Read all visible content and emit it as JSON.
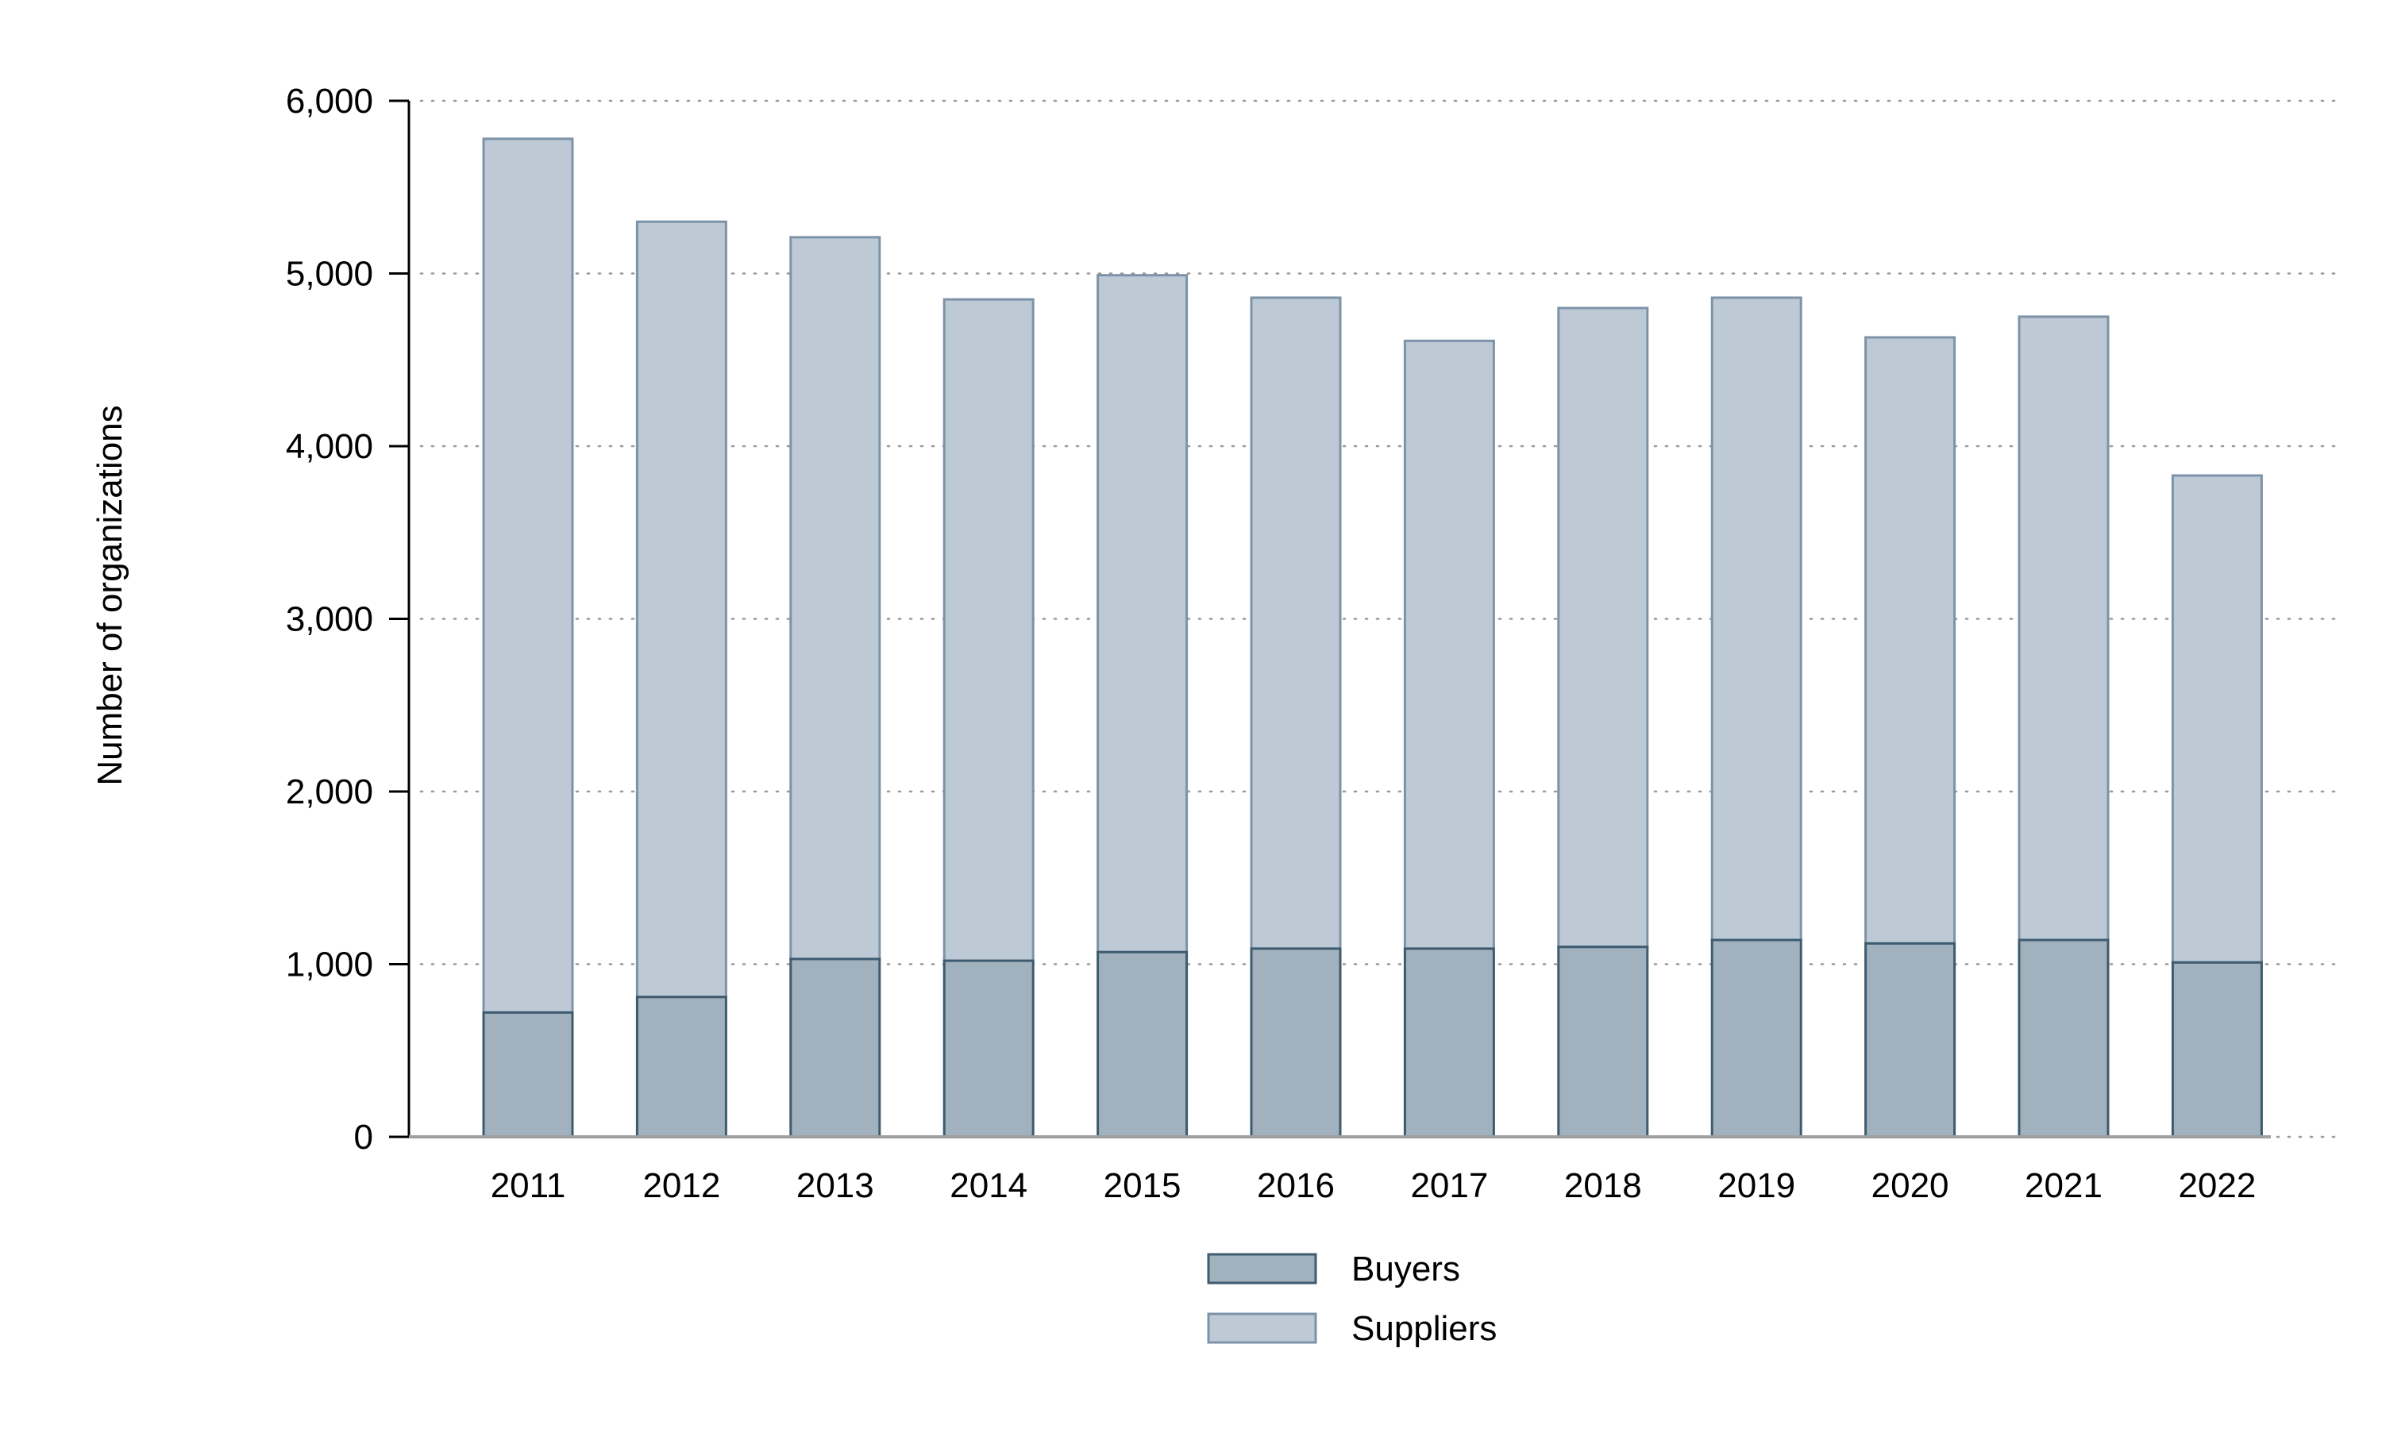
{
  "chart_data": {
    "type": "bar",
    "stacked": true,
    "categories": [
      "2011",
      "2012",
      "2013",
      "2014",
      "2015",
      "2016",
      "2017",
      "2018",
      "2019",
      "2020",
      "2021",
      "2022"
    ],
    "series": [
      {
        "name": "Buyers",
        "values": [
          720,
          810,
          1030,
          1020,
          1070,
          1090,
          1090,
          1100,
          1140,
          1120,
          1140,
          1010
        ],
        "fill": "#a1b1bd",
        "stroke": "#3e5b70"
      },
      {
        "name": "Suppliers",
        "values": [
          5060,
          4490,
          4180,
          3830,
          3920,
          3770,
          3520,
          3700,
          3720,
          3510,
          3610,
          2820
        ],
        "fill": "#bdc9d5",
        "stroke": "#7d93a8"
      }
    ],
    "ylabel": "Number of organizations",
    "xlabel": "",
    "ylim": [
      0,
      6000
    ],
    "yticks": [
      0,
      1000,
      2000,
      3000,
      4000,
      5000,
      6000
    ],
    "ytick_labels": [
      "0",
      "1,000",
      "2,000",
      "3,000",
      "4,000",
      "5,000",
      "6,000"
    ],
    "grid": "horizontal dotted",
    "legend_position": "bottom-center"
  }
}
